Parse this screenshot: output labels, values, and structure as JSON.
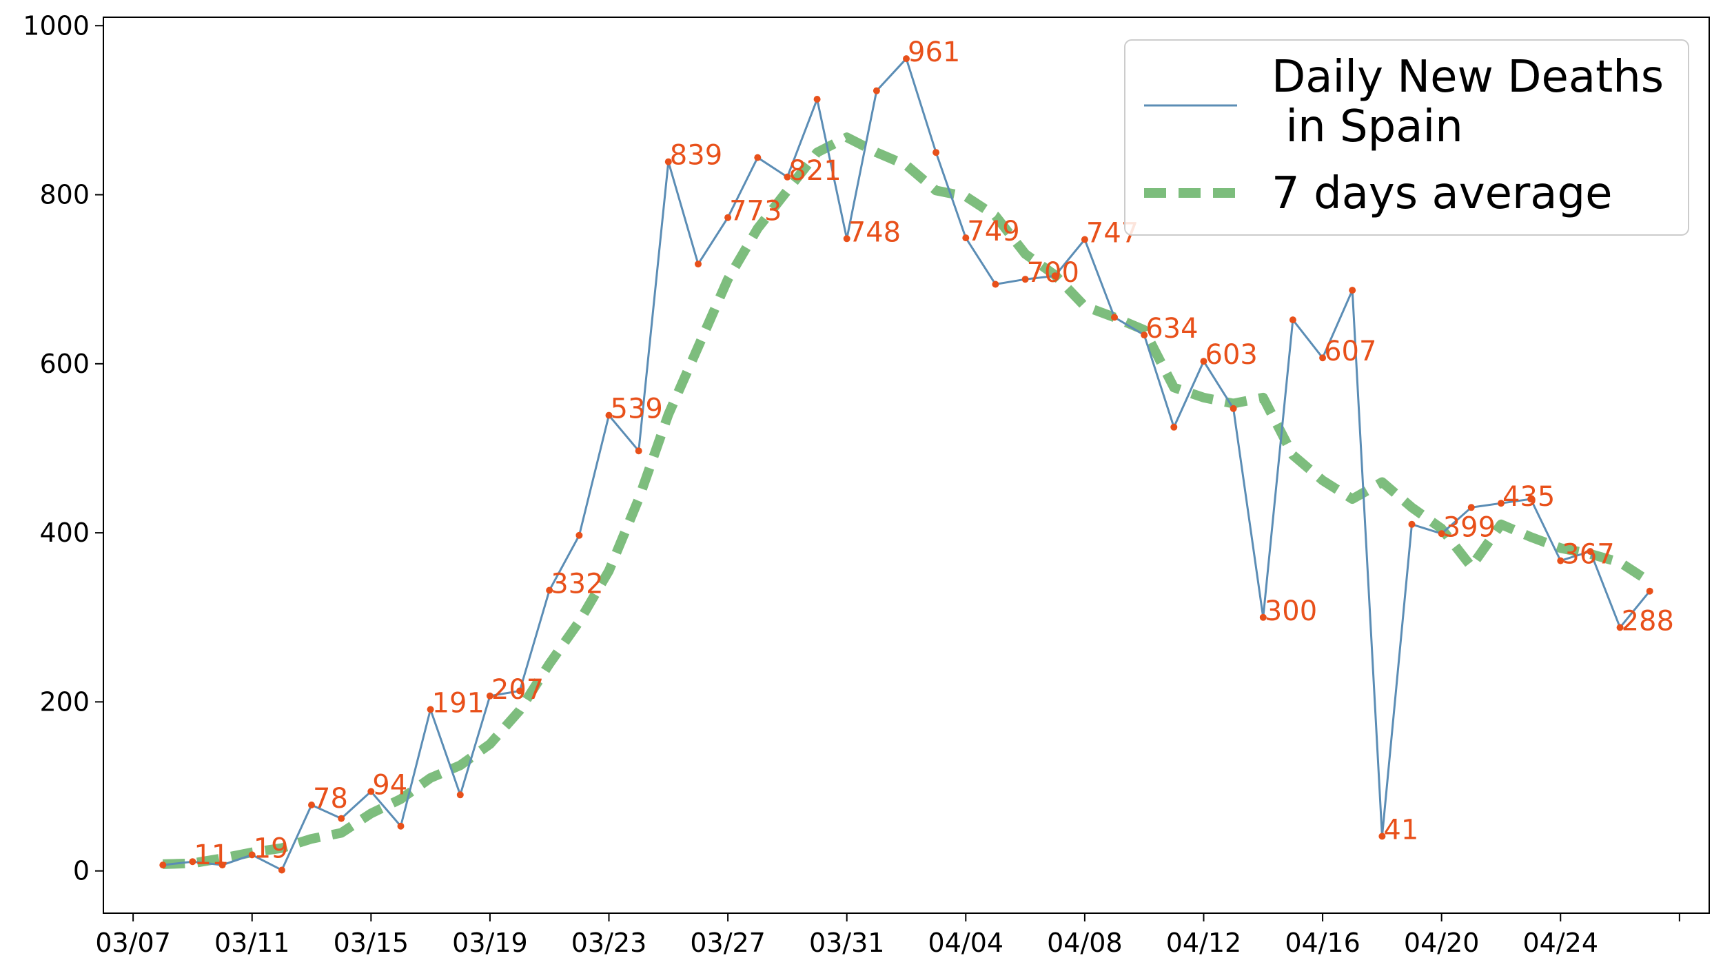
{
  "chart_data": {
    "type": "line",
    "xlabel": "",
    "ylabel": "",
    "ylim": [
      -50,
      1010
    ],
    "xlim": [
      "2020-03-06",
      "2020-04-29"
    ],
    "yticks": [
      0,
      200,
      400,
      600,
      800,
      1000
    ],
    "xticks": [
      {
        "date": "2020-03-07",
        "label": "03/07"
      },
      {
        "date": "2020-03-11",
        "label": "03/11"
      },
      {
        "date": "2020-03-15",
        "label": "03/15"
      },
      {
        "date": "2020-03-19",
        "label": "03/19"
      },
      {
        "date": "2020-03-23",
        "label": "03/23"
      },
      {
        "date": "2020-03-27",
        "label": "03/27"
      },
      {
        "date": "2020-03-31",
        "label": "03/31"
      },
      {
        "date": "2020-04-04",
        "label": "04/04"
      },
      {
        "date": "2020-04-08",
        "label": "04/08"
      },
      {
        "date": "2020-04-12",
        "label": "04/12"
      },
      {
        "date": "2020-04-16",
        "label": "04/16"
      },
      {
        "date": "2020-04-20",
        "label": "04/20"
      },
      {
        "date": "2020-04-24",
        "label": "04/24"
      },
      {
        "date": "2020-04-28",
        "label": ""
      }
    ],
    "legend_position": "top-right",
    "grid": false,
    "x": [
      "2020-03-08",
      "2020-03-09",
      "2020-03-10",
      "2020-03-11",
      "2020-03-12",
      "2020-03-13",
      "2020-03-14",
      "2020-03-15",
      "2020-03-16",
      "2020-03-17",
      "2020-03-18",
      "2020-03-19",
      "2020-03-20",
      "2020-03-21",
      "2020-03-22",
      "2020-03-23",
      "2020-03-24",
      "2020-03-25",
      "2020-03-26",
      "2020-03-27",
      "2020-03-28",
      "2020-03-29",
      "2020-03-30",
      "2020-03-31",
      "2020-04-01",
      "2020-04-02",
      "2020-04-03",
      "2020-04-04",
      "2020-04-05",
      "2020-04-06",
      "2020-04-07",
      "2020-04-08",
      "2020-04-09",
      "2020-04-10",
      "2020-04-11",
      "2020-04-12",
      "2020-04-13",
      "2020-04-14",
      "2020-04-15",
      "2020-04-16",
      "2020-04-17",
      "2020-04-18",
      "2020-04-19",
      "2020-04-20",
      "2020-04-21",
      "2020-04-22",
      "2020-04-23",
      "2020-04-24",
      "2020-04-25",
      "2020-04-26",
      "2020-04-27"
    ],
    "series": [
      {
        "name": "Daily New Deaths\n in Spain",
        "color": "#5b8db5",
        "point_color": "#e8501a",
        "values": [
          7,
          11,
          7,
          19,
          1,
          78,
          62,
          94,
          53,
          191,
          90,
          207,
          213,
          332,
          397,
          539,
          497,
          839,
          718,
          773,
          844,
          821,
          913,
          748,
          923,
          961,
          850,
          749,
          694,
          700,
          704,
          747,
          655,
          634,
          525,
          603,
          547,
          300,
          652,
          607,
          687,
          41,
          410,
          399,
          430,
          435,
          440,
          367,
          378,
          288,
          331
        ],
        "labels": [
          null,
          "11",
          null,
          "19",
          null,
          "78",
          null,
          "94",
          null,
          "191",
          null,
          "207",
          null,
          "332",
          null,
          "539",
          null,
          "839",
          null,
          "773",
          null,
          "821",
          null,
          "748",
          null,
          "961",
          null,
          "749",
          null,
          "700",
          null,
          "747",
          null,
          "634",
          null,
          "603",
          null,
          "300",
          null,
          "607",
          null,
          "41",
          null,
          "399",
          null,
          "435",
          null,
          "367",
          null,
          "288",
          null
        ]
      },
      {
        "name": "7 days average",
        "color": "#66b266",
        "style": "dashed",
        "values": [
          8,
          9,
          15,
          22,
          27,
          38,
          45,
          68,
          85,
          110,
          125,
          150,
          190,
          245,
          295,
          355,
          440,
          540,
          620,
          700,
          760,
          805,
          850,
          868,
          850,
          835,
          805,
          798,
          775,
          730,
          705,
          668,
          655,
          640,
          572,
          560,
          553,
          560,
          492,
          462,
          440,
          460,
          430,
          405,
          360,
          410,
          395,
          382,
          375,
          365,
          342
        ]
      }
    ]
  }
}
